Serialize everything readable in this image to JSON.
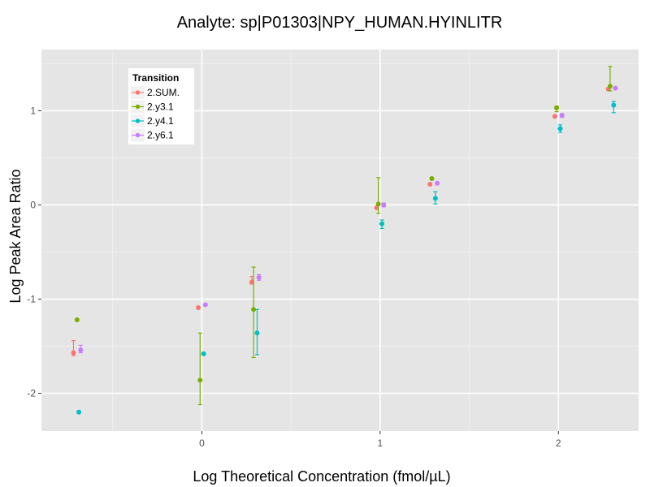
{
  "chart_data": {
    "type": "scatter",
    "title": "Analyte: sp|P01303|NPY_HUMAN.HYINLITR",
    "xlabel": "Log Theoretical Concentration (fmol/µL)",
    "ylabel": "Log Peak Area Ratio",
    "xlim": [
      -0.9,
      2.45
    ],
    "ylim": [
      -2.4,
      1.65
    ],
    "x_ticks": [
      0,
      1,
      2
    ],
    "x_tick_labels": [
      "0",
      "1",
      "2"
    ],
    "y_ticks": [
      -2,
      -1,
      0,
      1
    ],
    "y_tick_labels": [
      "-2",
      "-1",
      "0",
      "1"
    ],
    "grid": true,
    "legend": {
      "title": "Transition",
      "position": "top-left"
    },
    "series": [
      {
        "name": "2.SUM.",
        "color": "#F8766D",
        "points": [
          {
            "x": -0.72,
            "y": -1.57,
            "lo": -1.6,
            "hi": -1.44
          },
          {
            "x": -0.02,
            "y": -1.09,
            "lo": -1.1,
            "hi": -1.08
          },
          {
            "x": 0.28,
            "y": -0.82,
            "lo": -0.84,
            "hi": -0.76
          },
          {
            "x": 0.98,
            "y": -0.03,
            "lo": -0.04,
            "hi": -0.02
          },
          {
            "x": 1.28,
            "y": 0.22,
            "lo": 0.21,
            "hi": 0.23
          },
          {
            "x": 1.98,
            "y": 0.94,
            "lo": 0.93,
            "hi": 0.95
          },
          {
            "x": 2.28,
            "y": 1.23,
            "lo": 1.22,
            "hi": 1.24
          }
        ]
      },
      {
        "name": "2.y3.1",
        "color": "#7CAE00",
        "points": [
          {
            "x": -0.7,
            "y": -1.22,
            "lo": -1.23,
            "hi": -1.21
          },
          {
            "x": -0.01,
            "y": -1.86,
            "lo": -2.12,
            "hi": -1.36
          },
          {
            "x": 0.29,
            "y": -1.11,
            "lo": -1.62,
            "hi": -0.66
          },
          {
            "x": 0.99,
            "y": 0.01,
            "lo": -0.09,
            "hi": 0.29
          },
          {
            "x": 1.29,
            "y": 0.28,
            "lo": 0.27,
            "hi": 0.29
          },
          {
            "x": 1.99,
            "y": 1.03,
            "lo": 0.99,
            "hi": 1.05
          },
          {
            "x": 2.29,
            "y": 1.26,
            "lo": 1.21,
            "hi": 1.47
          }
        ]
      },
      {
        "name": "2.y4.1",
        "color": "#00BFC4",
        "points": [
          {
            "x": -0.69,
            "y": -2.2,
            "lo": -2.21,
            "hi": -2.19
          },
          {
            "x": 0.01,
            "y": -1.58,
            "lo": -1.59,
            "hi": -1.57
          },
          {
            "x": 0.31,
            "y": -1.36,
            "lo": -1.59,
            "hi": -1.11
          },
          {
            "x": 1.01,
            "y": -0.2,
            "lo": -0.25,
            "hi": -0.16
          },
          {
            "x": 1.31,
            "y": 0.07,
            "lo": 0.01,
            "hi": 0.14
          },
          {
            "x": 2.01,
            "y": 0.81,
            "lo": 0.77,
            "hi": 0.85
          },
          {
            "x": 2.31,
            "y": 1.06,
            "lo": 0.98,
            "hi": 1.1
          }
        ]
      },
      {
        "name": "2.y6.1",
        "color": "#C77CFF",
        "points": [
          {
            "x": -0.68,
            "y": -1.54,
            "lo": -1.57,
            "hi": -1.49
          },
          {
            "x": 0.02,
            "y": -1.06,
            "lo": -1.07,
            "hi": -1.05
          },
          {
            "x": 0.32,
            "y": -0.77,
            "lo": -0.8,
            "hi": -0.74
          },
          {
            "x": 1.02,
            "y": 0.0,
            "lo": -0.02,
            "hi": 0.02
          },
          {
            "x": 1.32,
            "y": 0.23,
            "lo": 0.22,
            "hi": 0.24
          },
          {
            "x": 2.02,
            "y": 0.95,
            "lo": 0.93,
            "hi": 0.97
          },
          {
            "x": 2.32,
            "y": 1.24,
            "lo": 1.23,
            "hi": 1.25
          }
        ]
      }
    ]
  }
}
